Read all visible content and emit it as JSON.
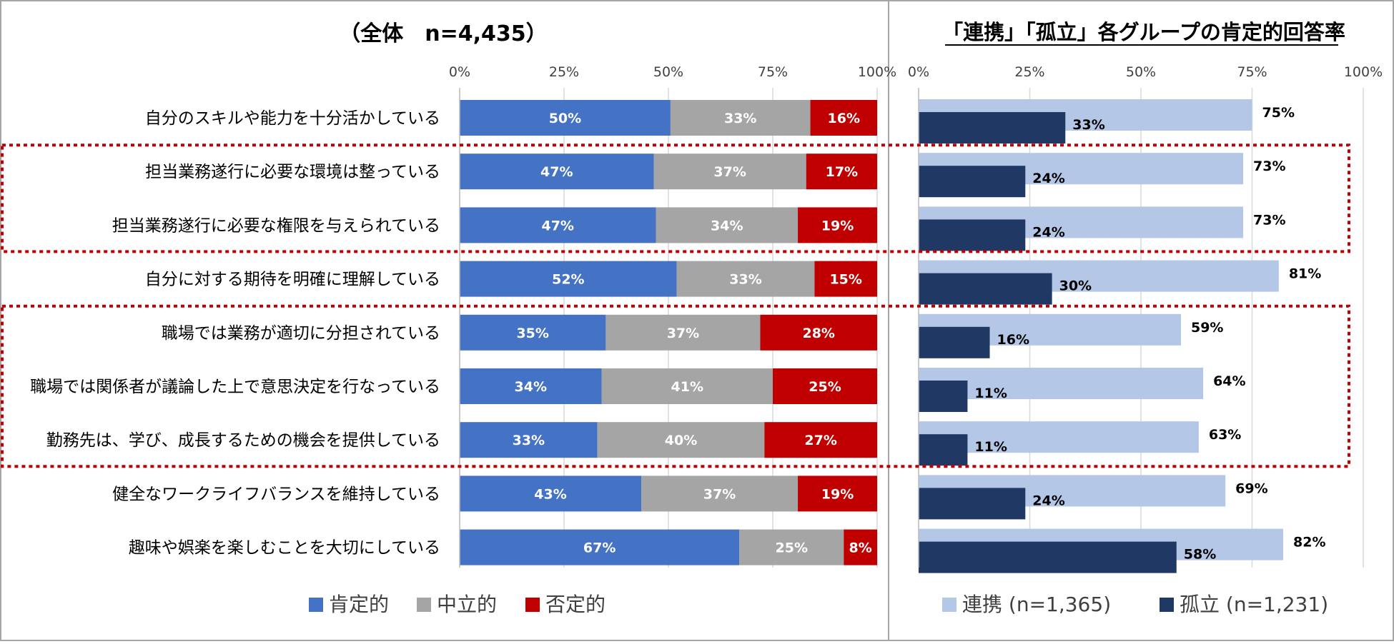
{
  "chart_data": [
    {
      "type": "bar",
      "orientation": "horizontal",
      "stacked": true,
      "title": "（全体　n=4,435）",
      "xlim": [
        0,
        100
      ],
      "x_ticks": [
        "0%",
        "25%",
        "50%",
        "75%",
        "100%"
      ],
      "grid": true,
      "legend_position": "bottom",
      "categories": [
        "自分のスキルや能力を十分活かしている",
        "担当業務遂行に必要な環境は整っている",
        "担当業務遂行に必要な権限を与えられている",
        "自分に対する期待を明確に理解している",
        "職場では業務が適切に分担されている",
        "職場では関係者が議論した上で意思決定を行なっている",
        "勤務先は、学び、成長するための機会を提供している",
        "健全なワークライフバランスを維持している",
        "趣味や娯楽を楽しむことを大切にしている"
      ],
      "series": [
        {
          "name": "肯定的",
          "color": "#4472C4",
          "label_color": "#ffffff",
          "values": [
            50.5,
            46.5,
            47,
            52,
            35,
            34,
            33,
            43.5,
            67
          ],
          "labels": [
            "50%",
            "47%",
            "47%",
            "52%",
            "35%",
            "34%",
            "33%",
            "43%",
            "67%"
          ]
        },
        {
          "name": "中立的",
          "color": "#A5A5A5",
          "label_color": "#ffffff",
          "values": [
            33.5,
            36.5,
            34,
            33,
            37,
            41,
            40,
            37.5,
            25
          ],
          "labels": [
            "33%",
            "37%",
            "34%",
            "33%",
            "37%",
            "41%",
            "40%",
            "37%",
            "25%"
          ]
        },
        {
          "name": "否定的",
          "color": "#C00000",
          "label_color": "#ffffff",
          "values": [
            16,
            17,
            19,
            15,
            28,
            25,
            27,
            19,
            8
          ],
          "labels": [
            "16%",
            "17%",
            "19%",
            "15%",
            "28%",
            "25%",
            "27%",
            "19%",
            "8%"
          ]
        }
      ]
    },
    {
      "type": "bar",
      "orientation": "horizontal",
      "stacked": false,
      "title": "「連携」「孤立」各グループの肯定的回答率",
      "xlim": [
        0,
        100
      ],
      "x_ticks": [
        "0%",
        "25%",
        "50%",
        "75%",
        "100%"
      ],
      "grid": true,
      "legend_position": "bottom",
      "categories": [
        "自分のスキルや能力を十分活かしている",
        "担当業務遂行に必要な環境は整っている",
        "担当業務遂行に必要な権限を与えられている",
        "自分に対する期待を明確に理解している",
        "職場では業務が適切に分担されている",
        "職場では関係者が議論した上で意思決定を行なっている",
        "勤務先は、学び、成長するための機会を提供している",
        "健全なワークライフバランスを維持している",
        "趣味や娯楽を楽しむことを大切にしている"
      ],
      "series": [
        {
          "name": "連携 (n=1,365)",
          "color": "#B4C7E7",
          "values": [
            75,
            73,
            73,
            81,
            59,
            64,
            63,
            69,
            82
          ],
          "labels": [
            "75%",
            "73%",
            "73%",
            "81%",
            "59%",
            "64%",
            "63%",
            "69%",
            "82%"
          ]
        },
        {
          "name": "孤立 (n=1,231)",
          "color": "#203864",
          "values": [
            33,
            24,
            24,
            30,
            16,
            11,
            11,
            24,
            58
          ],
          "labels": [
            "33%",
            "24%",
            "24%",
            "30%",
            "16%",
            "11%",
            "11%",
            "24%",
            "58%"
          ]
        }
      ],
      "highlight_groups": [
        [
          1,
          2
        ],
        [
          4,
          5,
          6
        ]
      ],
      "highlight_color": "#C00000"
    }
  ]
}
